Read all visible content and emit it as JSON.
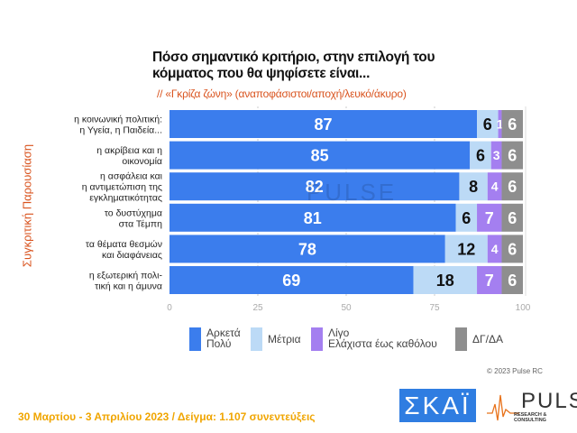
{
  "chart_data": {
    "type": "bar",
    "orientation": "horizontal",
    "stacked": true,
    "title": "Πόσο σημαντικό κριτήριο, στην επιλογή του κόμματος που θα ψηφίσετε είναι...",
    "subtitle": "// «Γκρίζα ζώνη» (αναποφάσιστοι/αποχή/λευκό/άκυρο)",
    "ylabel": "Συγκριτική  Παρουσίαση",
    "xlim": [
      0,
      100
    ],
    "xticks": [
      "0",
      "25",
      "50",
      "75",
      "100"
    ],
    "grid": true,
    "legend_position": "bottom",
    "categories": [
      [
        "η κοινωνική πολιτική:",
        "η Υγεία, η Παιδεία..."
      ],
      [
        "η ακρίβεια και η",
        "οικονομία"
      ],
      [
        "η ασφάλεια και",
        "η αντιμετώπιση της",
        "εγκληματικότητας"
      ],
      [
        "το δυστύχημα",
        "στα Τέμπη"
      ],
      [
        "τα θέματα θεσμών",
        "και διαφάνειας"
      ],
      [
        "η εξωτερική πολι-",
        "τική και η άμυνα"
      ]
    ],
    "series": [
      {
        "name": "Αρκετά Πολύ",
        "legend_lines": [
          "Αρκετά",
          "Πολύ"
        ],
        "color": "#3b7ded",
        "label_color": "#ffffff",
        "values": [
          87,
          85,
          82,
          81,
          78,
          69
        ]
      },
      {
        "name": "Μέτρια",
        "legend_lines": [
          "Μέτρια"
        ],
        "color": "#bcdaf6",
        "label_color": "#111111",
        "values": [
          6,
          6,
          8,
          6,
          12,
          18
        ]
      },
      {
        "name": "Λίγο Ελάχιστα έως καθόλου",
        "legend_lines": [
          "Λίγο",
          "Ελάχιστα έως καθόλου"
        ],
        "color": "#a47ff0",
        "label_color": "#ffffff",
        "values": [
          1,
          3,
          4,
          7,
          4,
          7
        ]
      },
      {
        "name": "ΔΓ/ΔΑ",
        "legend_lines": [
          "ΔΓ/ΔΑ"
        ],
        "color": "#8e8e8e",
        "label_color": "#ffffff",
        "values": [
          6,
          6,
          6,
          6,
          6,
          6
        ]
      }
    ]
  },
  "watermark": "PULSE RESEARCH & CONSULTING",
  "copyright": "© 2023 Pulse RC",
  "footer": "30 Μαρτίου - 3  Απριλίου  2023  /  Δείγμα:  1.107 συνεντεύξεις",
  "logos": {
    "skai": "ΣΚΑΪ",
    "pulse": "PULSE",
    "pulse_sub": "RESEARCH & CONSULTING"
  }
}
